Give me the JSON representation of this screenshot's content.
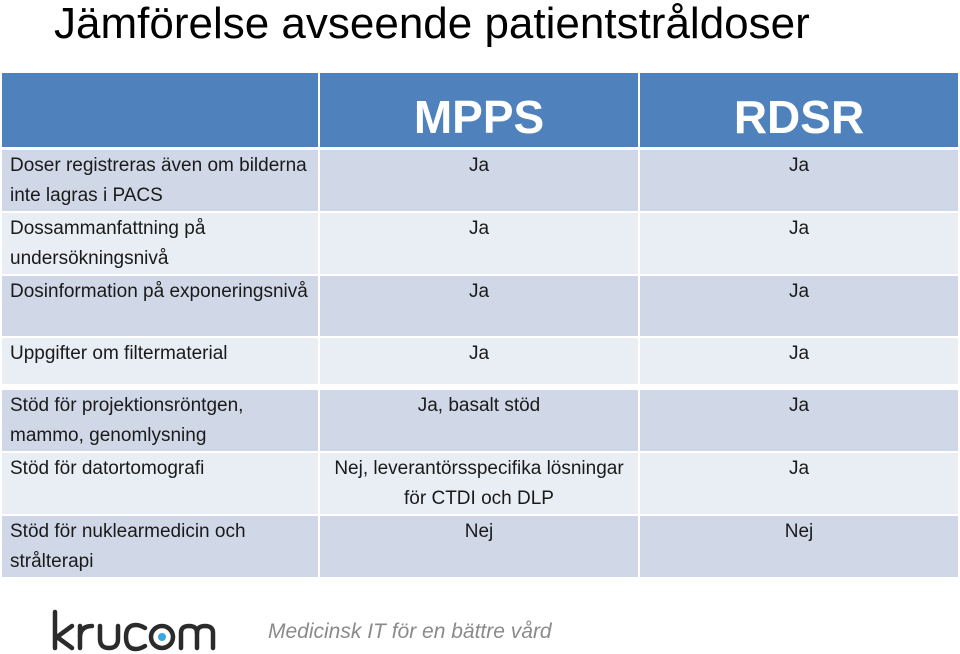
{
  "title": "Jämförelse avseende patientstråldoser",
  "table": {
    "columns": [
      "",
      "MPPS",
      "RDSR"
    ],
    "rows": [
      {
        "label": "Doser registreras även om bilderna inte lagras i PACS",
        "mpps": "Ja",
        "rdsr": "Ja"
      },
      {
        "label": "Dossammanfattning på undersökningsnivå",
        "mpps": "Ja",
        "rdsr": "Ja"
      },
      {
        "label": "Dosinformation på exponeringsnivå",
        "mpps": "Ja",
        "rdsr": "Ja"
      },
      {
        "label": "Uppgifter om filtermaterial",
        "mpps": "Ja",
        "rdsr": "Ja"
      },
      {
        "label": "Stöd för projektionsröntgen, mammo, genomlysning",
        "mpps": "Ja, basalt stöd",
        "rdsr": "Ja"
      },
      {
        "label": "Stöd för datortomografi",
        "mpps": "Nej, leverantörsspecifika lösningar för CTDI och DLP",
        "rdsr": "Ja"
      },
      {
        "label": "Stöd för nuklearmedicin och strålterapi",
        "mpps": "Nej",
        "rdsr": "Nej"
      }
    ]
  },
  "footer": {
    "logo_text": "krucom",
    "tagline": "Medicinsk IT för en bättre vård"
  }
}
